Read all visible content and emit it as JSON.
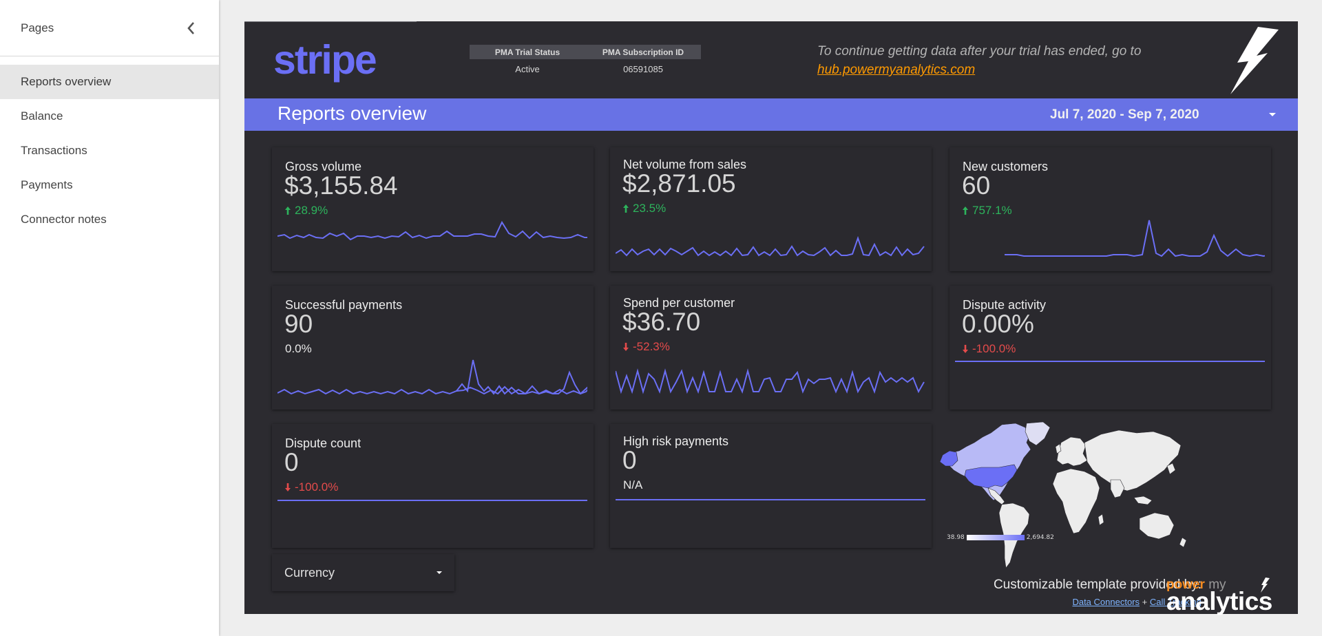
{
  "sidebar": {
    "title": "Pages",
    "items": [
      {
        "label": "Reports overview",
        "active": true
      },
      {
        "label": "Balance"
      },
      {
        "label": "Transactions"
      },
      {
        "label": "Payments"
      },
      {
        "label": "Connector notes"
      }
    ]
  },
  "header": {
    "logo_text": "stripe",
    "status_table": {
      "col1_header": "PMA Trial Status",
      "col2_header": "PMA Subscription ID",
      "col1_value": "Active",
      "col2_value": "06591085"
    },
    "trial_message": "To continue getting data after your trial has ended, go to",
    "trial_link": "hub.powermyanalytics.com"
  },
  "title_bar": {
    "title": "Reports overview",
    "date_range": "Jul 7, 2020 - Sep 7, 2020"
  },
  "cards": {
    "gross_volume": {
      "label": "Gross volume",
      "value": "$3,155.84",
      "change": "28.9%",
      "direction": "up"
    },
    "net_volume": {
      "label": "Net volume from sales",
      "value": "$2,871.05",
      "change": "23.5%",
      "direction": "up"
    },
    "new_customers": {
      "label": "New customers",
      "value": "60",
      "change": "757.1%",
      "direction": "up"
    },
    "successful_payments": {
      "label": "Successful payments",
      "value": "90",
      "change": "0.0%",
      "direction": "neutral"
    },
    "spend_per_customer": {
      "label": "Spend per customer",
      "value": "$36.70",
      "change": "-52.3%",
      "direction": "down"
    },
    "dispute_activity": {
      "label": "Dispute activity",
      "value": "0.00%",
      "change": "-100.0%",
      "direction": "down"
    },
    "dispute_count": {
      "label": "Dispute count",
      "value": "0",
      "change": "-100.0%",
      "direction": "down"
    },
    "high_risk_payments": {
      "label": "High risk payments",
      "value": "0",
      "change": "N/A",
      "direction": "neutral"
    }
  },
  "map": {
    "legend_min": "38.98",
    "legend_max": "2,694.82",
    "highlight_color": "#6b6ff5"
  },
  "currency_filter": {
    "label": "Currency"
  },
  "footer": {
    "credit_label": "Customizable template provided by:",
    "link1": "Data Connectors",
    "separator": "+",
    "link2": "Call Tracking",
    "brand_top_1": "power",
    "brand_top_2": "my",
    "brand_bottom": "analytics"
  },
  "colors": {
    "accent": "#6872e5",
    "line": "#6b6ff5",
    "positive": "#2db45c",
    "negative": "#e44b4b",
    "brand_orange": "#f48a1f"
  }
}
